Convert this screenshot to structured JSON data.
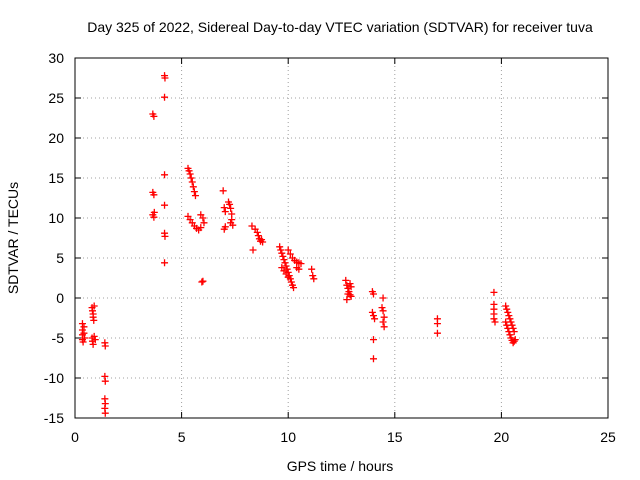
{
  "chart_data": {
    "type": "scatter",
    "title": "Day 325 of 2022, Sidereal Day-to-day VTEC variation (SDTVAR) for receiver tuva",
    "xlabel": "GPS time / hours",
    "ylabel": "SDTVAR / TECUs",
    "xlim": [
      0,
      25
    ],
    "ylim": [
      -15,
      30
    ],
    "x_ticks": [
      0,
      5,
      10,
      15,
      20,
      25
    ],
    "y_ticks": [
      -15,
      -10,
      -5,
      0,
      5,
      10,
      15,
      20,
      25,
      30
    ],
    "grid": true,
    "marker": "plus",
    "colors": {
      "series": "#ff0000",
      "grid": "#a0a0a0",
      "axis": "#000000"
    },
    "series": [
      {
        "name": "SDTVAR",
        "points": [
          [
            0.35,
            -3.2
          ],
          [
            0.35,
            -4.0
          ],
          [
            0.35,
            -4.6
          ],
          [
            0.35,
            -5.2
          ],
          [
            0.38,
            -5.5
          ],
          [
            0.42,
            -3.6
          ],
          [
            0.42,
            -4.4
          ],
          [
            0.45,
            -5.0
          ],
          [
            0.8,
            -1.2
          ],
          [
            0.82,
            -1.6
          ],
          [
            0.85,
            -2.0
          ],
          [
            0.85,
            -2.4
          ],
          [
            0.88,
            -2.8
          ],
          [
            0.9,
            -1.0
          ],
          [
            0.8,
            -5.0
          ],
          [
            0.82,
            -5.4
          ],
          [
            0.85,
            -5.8
          ],
          [
            0.9,
            -4.8
          ],
          [
            0.95,
            -5.2
          ],
          [
            1.4,
            -5.6
          ],
          [
            1.42,
            -6.0
          ],
          [
            1.4,
            -9.8
          ],
          [
            1.42,
            -10.4
          ],
          [
            1.4,
            -12.6
          ],
          [
            1.42,
            -13.2
          ],
          [
            1.4,
            -13.8
          ],
          [
            1.42,
            -14.4
          ],
          [
            3.65,
            23.0
          ],
          [
            3.7,
            22.7
          ],
          [
            3.65,
            13.2
          ],
          [
            3.7,
            12.9
          ],
          [
            3.65,
            10.4
          ],
          [
            3.7,
            10.1
          ],
          [
            3.72,
            10.7
          ],
          [
            4.2,
            27.8
          ],
          [
            4.22,
            27.5
          ],
          [
            4.2,
            25.1
          ],
          [
            4.2,
            15.4
          ],
          [
            4.2,
            11.6
          ],
          [
            4.2,
            8.1
          ],
          [
            4.22,
            7.7
          ],
          [
            4.2,
            4.4
          ],
          [
            5.3,
            16.2
          ],
          [
            5.35,
            15.9
          ],
          [
            5.4,
            15.5
          ],
          [
            5.45,
            15.0
          ],
          [
            5.5,
            14.5
          ],
          [
            5.55,
            13.9
          ],
          [
            5.6,
            13.3
          ],
          [
            5.65,
            12.8
          ],
          [
            5.3,
            10.2
          ],
          [
            5.4,
            9.8
          ],
          [
            5.5,
            9.4
          ],
          [
            5.6,
            9.0
          ],
          [
            5.7,
            8.7
          ],
          [
            5.8,
            8.5
          ],
          [
            5.9,
            8.8
          ],
          [
            5.9,
            10.4
          ],
          [
            6.0,
            10.0
          ],
          [
            6.05,
            9.4
          ],
          [
            5.95,
            2.0
          ],
          [
            6.0,
            2.1
          ],
          [
            6.95,
            13.4
          ],
          [
            7.0,
            11.3
          ],
          [
            7.05,
            10.8
          ],
          [
            7.0,
            8.6
          ],
          [
            7.05,
            8.9
          ],
          [
            7.2,
            12.0
          ],
          [
            7.25,
            11.7
          ],
          [
            7.3,
            11.2
          ],
          [
            7.35,
            10.5
          ],
          [
            7.3,
            9.4
          ],
          [
            7.35,
            9.8
          ],
          [
            7.4,
            9.1
          ],
          [
            8.3,
            9.0
          ],
          [
            8.35,
            6.0
          ],
          [
            8.45,
            8.6
          ],
          [
            8.55,
            8.2
          ],
          [
            8.6,
            7.8
          ],
          [
            8.65,
            7.4
          ],
          [
            8.7,
            7.1
          ],
          [
            8.75,
            7.3
          ],
          [
            8.8,
            7.0
          ],
          [
            9.6,
            6.4
          ],
          [
            9.65,
            6.0
          ],
          [
            9.7,
            5.6
          ],
          [
            9.75,
            5.2
          ],
          [
            9.8,
            4.8
          ],
          [
            9.85,
            4.4
          ],
          [
            9.9,
            4.0
          ],
          [
            9.95,
            3.6
          ],
          [
            10.0,
            3.2
          ],
          [
            10.05,
            2.8
          ],
          [
            10.1,
            2.4
          ],
          [
            10.15,
            2.0
          ],
          [
            10.2,
            1.6
          ],
          [
            10.25,
            1.3
          ],
          [
            9.7,
            3.8
          ],
          [
            9.8,
            3.4
          ],
          [
            9.9,
            3.0
          ],
          [
            10.0,
            2.6
          ],
          [
            10.0,
            6.0
          ],
          [
            10.1,
            5.5
          ],
          [
            10.2,
            5.0
          ],
          [
            10.3,
            4.7
          ],
          [
            10.4,
            4.5
          ],
          [
            10.5,
            4.4
          ],
          [
            10.6,
            4.3
          ],
          [
            10.4,
            3.8
          ],
          [
            10.5,
            3.6
          ],
          [
            11.1,
            3.6
          ],
          [
            11.15,
            2.8
          ],
          [
            11.2,
            2.4
          ],
          [
            12.7,
            2.2
          ],
          [
            12.75,
            1.6
          ],
          [
            12.8,
            1.2
          ],
          [
            12.85,
            0.8
          ],
          [
            12.9,
            0.4
          ],
          [
            12.95,
            0.2
          ],
          [
            12.75,
            -0.2
          ],
          [
            12.8,
            0.5
          ],
          [
            12.9,
            1.8
          ],
          [
            12.95,
            1.4
          ],
          [
            13.95,
            0.8
          ],
          [
            14.0,
            0.5
          ],
          [
            13.95,
            -1.8
          ],
          [
            14.0,
            -2.2
          ],
          [
            14.05,
            -2.6
          ],
          [
            14.0,
            -5.2
          ],
          [
            14.0,
            -7.6
          ],
          [
            14.45,
            0.0
          ],
          [
            14.4,
            -1.2
          ],
          [
            14.45,
            -1.6
          ],
          [
            14.5,
            -2.4
          ],
          [
            14.45,
            -3.0
          ],
          [
            14.5,
            -3.6
          ],
          [
            17.0,
            -2.6
          ],
          [
            17.0,
            -3.2
          ],
          [
            17.0,
            -4.4
          ],
          [
            19.65,
            0.7
          ],
          [
            19.65,
            -0.8
          ],
          [
            19.65,
            -1.4
          ],
          [
            19.65,
            -2.0
          ],
          [
            19.65,
            -2.6
          ],
          [
            19.7,
            -3.0
          ],
          [
            20.2,
            -1.0
          ],
          [
            20.25,
            -1.4
          ],
          [
            20.3,
            -1.8
          ],
          [
            20.35,
            -2.2
          ],
          [
            20.4,
            -2.6
          ],
          [
            20.45,
            -3.0
          ],
          [
            20.5,
            -3.4
          ],
          [
            20.55,
            -3.8
          ],
          [
            20.6,
            -4.2
          ],
          [
            20.2,
            -3.0
          ],
          [
            20.25,
            -3.4
          ],
          [
            20.3,
            -3.8
          ],
          [
            20.35,
            -4.2
          ],
          [
            20.4,
            -4.6
          ],
          [
            20.45,
            -5.0
          ],
          [
            20.5,
            -5.3
          ],
          [
            20.55,
            -5.6
          ],
          [
            20.6,
            -5.4
          ],
          [
            20.65,
            -5.2
          ]
        ]
      }
    ]
  }
}
